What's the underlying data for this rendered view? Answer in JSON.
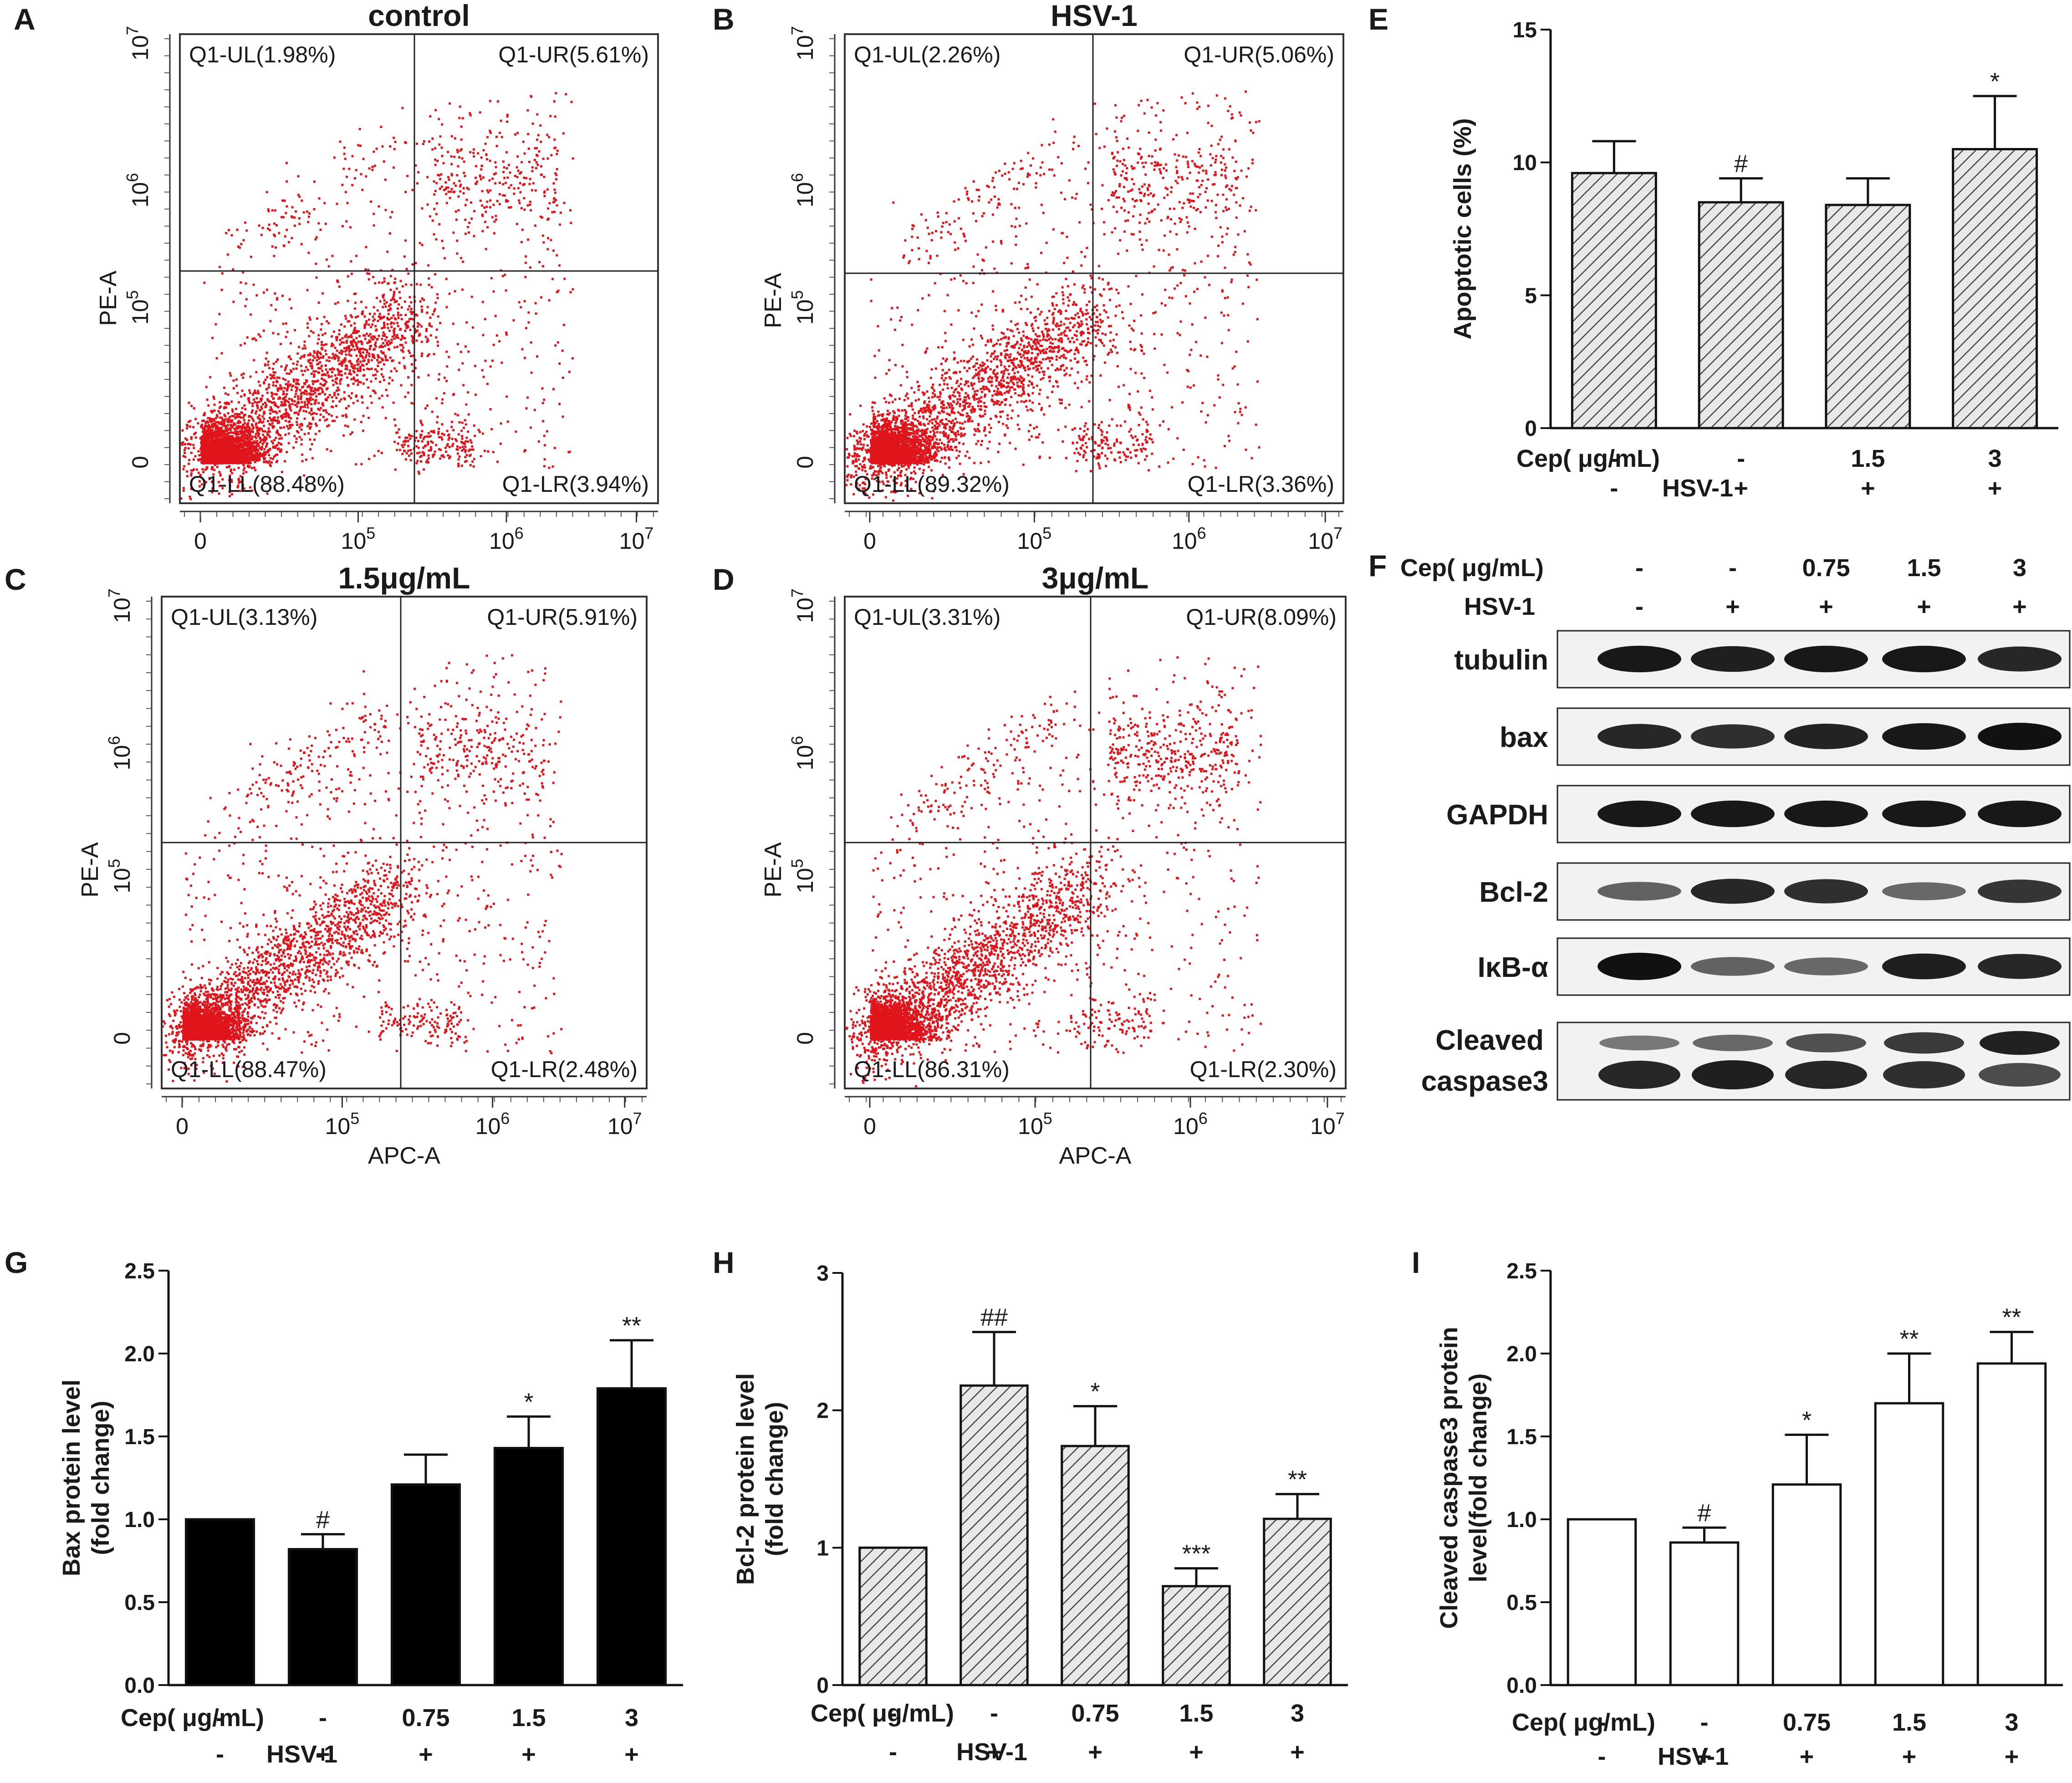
{
  "chart_data": [
    {
      "panel": "A",
      "type": "scatter",
      "title": "control",
      "xlabel": "",
      "ylabel": "PE-A",
      "x_ticks": [
        "0",
        "10",
        "10",
        "10"
      ],
      "y_ticks": [
        "0",
        "10",
        "10",
        "10"
      ],
      "tick_exponents": [
        "",
        "5",
        "6",
        "7"
      ],
      "quadrants": {
        "UL": "Q1-UL(1.98%)",
        "UR": "Q1-UR(5.61%)",
        "LL": "Q1-LL(88.48%)",
        "LR": "Q1-LR(3.94%)"
      },
      "quadrant_values": {
        "UL": 1.98,
        "UR": 5.61,
        "LL": 88.48,
        "LR": 3.94
      }
    },
    {
      "panel": "B",
      "type": "scatter",
      "title": "HSV-1",
      "xlabel": "",
      "ylabel": "PE-A",
      "x_ticks": [
        "0",
        "10",
        "10",
        "10"
      ],
      "y_ticks": [
        "0",
        "10",
        "10",
        "10"
      ],
      "tick_exponents": [
        "",
        "5",
        "6",
        "7"
      ],
      "quadrants": {
        "UL": "Q1-UL(2.26%)",
        "UR": "Q1-UR(5.06%)",
        "LL": "Q1-LL(89.32%)",
        "LR": "Q1-LR(3.36%)"
      },
      "quadrant_values": {
        "UL": 2.26,
        "UR": 5.06,
        "LL": 89.32,
        "LR": 3.36
      }
    },
    {
      "panel": "C",
      "type": "scatter",
      "title": "1.5μg/mL",
      "xlabel": "APC-A",
      "ylabel": "PE-A",
      "x_ticks": [
        "0",
        "10",
        "10",
        "10"
      ],
      "y_ticks": [
        "0",
        "10",
        "10",
        "10"
      ],
      "tick_exponents": [
        "",
        "5",
        "6",
        "7"
      ],
      "quadrants": {
        "UL": "Q1-UL(3.13%)",
        "UR": "Q1-UR(5.91%)",
        "LL": "Q1-LL(88.47%)",
        "LR": "Q1-LR(2.48%)"
      },
      "quadrant_values": {
        "UL": 3.13,
        "UR": 5.91,
        "LL": 88.47,
        "LR": 2.48
      }
    },
    {
      "panel": "D",
      "type": "scatter",
      "title": "3μg/mL",
      "xlabel": "APC-A",
      "ylabel": "PE-A",
      "x_ticks": [
        "0",
        "10",
        "10",
        "10"
      ],
      "y_ticks": [
        "0",
        "10",
        "10",
        "10"
      ],
      "tick_exponents": [
        "",
        "5",
        "6",
        "7"
      ],
      "quadrants": {
        "UL": "Q1-UL(3.31%)",
        "UR": "Q1-UR(8.09%)",
        "LL": "Q1-LL(86.31%)",
        "LR": "Q1-LR(2.30%)"
      },
      "quadrant_values": {
        "UL": 3.31,
        "UR": 8.09,
        "LL": 86.31,
        "LR": 2.3
      }
    },
    {
      "panel": "E",
      "type": "bar",
      "style": "hatched",
      "ylabel": "Apoptotic  cells (%)",
      "ylim": [
        0,
        15
      ],
      "y_ticks": [
        0,
        5,
        10,
        15
      ],
      "values": [
        9.6,
        8.5,
        8.4,
        10.5
      ],
      "errors": [
        1.2,
        0.9,
        1.0,
        2.0
      ],
      "significance": [
        "",
        "#",
        "",
        "*"
      ],
      "row_labels": [
        "Cep( μg/mL)",
        "HSV-1"
      ],
      "cep": [
        "-",
        "-",
        "1.5",
        "3"
      ],
      "hsv": [
        "-",
        "+",
        "+",
        "+"
      ]
    },
    {
      "panel": "G",
      "type": "bar",
      "style": "solid",
      "ylabel": [
        "Bax  protein level",
        "(fold change)"
      ],
      "ylim": [
        0,
        2.5
      ],
      "y_ticks": [
        "0.0",
        "0.5",
        "1.0",
        "1.5",
        "2.0",
        "2.5"
      ],
      "values": [
        1.0,
        0.82,
        1.21,
        1.43,
        1.79
      ],
      "errors": [
        0,
        0.09,
        0.18,
        0.19,
        0.29
      ],
      "significance": [
        "",
        "#",
        "",
        "*",
        "**"
      ],
      "row_labels": [
        "Cep( μg/mL)",
        "HSV-1"
      ],
      "cep": [
        "-",
        "-",
        "0.75",
        "1.5",
        "3"
      ],
      "hsv": [
        "-",
        "+",
        "+",
        "+",
        "+"
      ]
    },
    {
      "panel": "H",
      "type": "bar",
      "style": "hatched",
      "ylabel": [
        "Bcl-2  protein level",
        "(fold change)"
      ],
      "ylim": [
        0,
        3
      ],
      "y_ticks": [
        "0",
        "1",
        "2",
        "3"
      ],
      "values": [
        1.0,
        2.18,
        1.74,
        0.72,
        1.21
      ],
      "errors": [
        0,
        0.39,
        0.29,
        0.13,
        0.18
      ],
      "significance": [
        "",
        "##",
        "*",
        "***",
        "**"
      ],
      "row_labels": [
        "Cep( μg/mL)",
        "HSV-1"
      ],
      "cep": [
        "-",
        "-",
        "0.75",
        "1.5",
        "3"
      ],
      "hsv": [
        "-",
        "+",
        "+",
        "+",
        "+"
      ]
    },
    {
      "panel": "I",
      "type": "bar",
      "style": "open",
      "ylabel": [
        "Cleaved caspase3 protein",
        "level(fold change)"
      ],
      "ylim": [
        0,
        2.5
      ],
      "y_ticks": [
        "0.0",
        "0.5",
        "1.0",
        "1.5",
        "2.0",
        "2.5"
      ],
      "values": [
        1.0,
        0.86,
        1.21,
        1.7,
        1.94
      ],
      "errors": [
        0,
        0.09,
        0.3,
        0.3,
        0.19
      ],
      "significance": [
        "",
        "#",
        "*",
        "**",
        "**"
      ],
      "row_labels": [
        "Cep( μg/mL)",
        "HSV-1"
      ],
      "cep": [
        "-",
        "-",
        "0.75",
        "1.5",
        "3"
      ],
      "hsv": [
        "-",
        "+",
        "+",
        "+",
        "+"
      ]
    }
  ],
  "western_blot": {
    "panel": "F",
    "row_labels": [
      "Cep( μg/mL)",
      "HSV-1"
    ],
    "cep": [
      "-",
      "-",
      "0.75",
      "1.5",
      "3"
    ],
    "hsv": [
      "-",
      "+",
      "+",
      "+",
      "+"
    ],
    "proteins": [
      "tubulin",
      "bax",
      "GAPDH",
      "Bcl-2",
      "IκB-α"
    ],
    "caspase_label": [
      "Cleaved",
      "caspase3"
    ],
    "band_intensity": {
      "tubulin": [
        0.95,
        0.9,
        0.95,
        0.95,
        0.85
      ],
      "bax": [
        0.85,
        0.8,
        0.88,
        0.95,
        1.0
      ],
      "GAPDH": [
        0.95,
        0.95,
        0.95,
        0.95,
        0.95
      ],
      "Bcl-2": [
        0.45,
        0.85,
        0.8,
        0.4,
        0.75
      ],
      "IκB-α": [
        1.0,
        0.45,
        0.4,
        0.9,
        0.85
      ],
      "caspase_upper": [
        0.35,
        0.45,
        0.6,
        0.75,
        0.9
      ],
      "caspase_lower": [
        0.85,
        0.9,
        0.85,
        0.8,
        0.6
      ]
    }
  },
  "panel_letters": [
    "A",
    "B",
    "C",
    "D",
    "E",
    "F",
    "G",
    "H",
    "I"
  ]
}
